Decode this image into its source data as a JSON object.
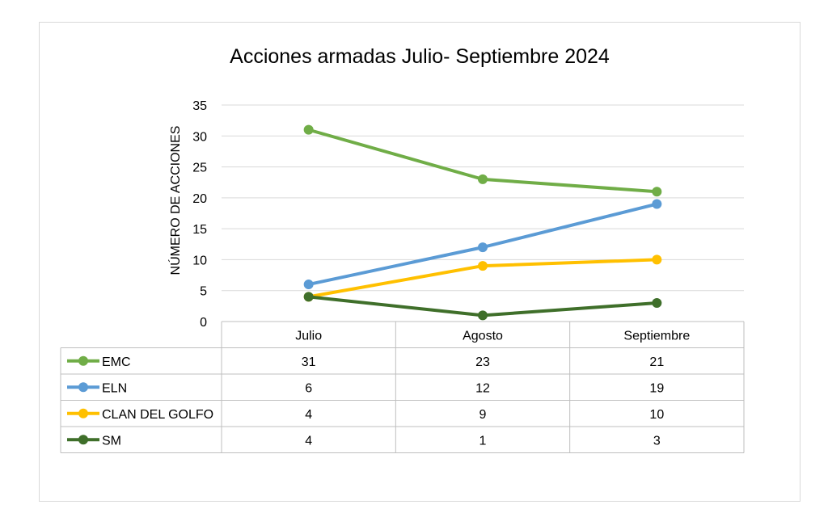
{
  "chart_data": {
    "type": "line",
    "title": "Acciones armadas Julio- Septiembre 2024",
    "xlabel": "",
    "ylabel": "NÚMERO DE ACCIONES",
    "categories": [
      "Julio",
      "Agosto",
      "Septiembre"
    ],
    "ylim": [
      0,
      35
    ],
    "yticks": [
      "0",
      "5",
      "10",
      "15",
      "20",
      "25",
      "30",
      "35"
    ],
    "grid": true,
    "legend": "data-table",
    "series": [
      {
        "name": "EMC",
        "values": [
          31,
          23,
          21
        ],
        "color": "#70ad47"
      },
      {
        "name": "ELN",
        "values": [
          6,
          12,
          19
        ],
        "color": "#5b9bd5"
      },
      {
        "name": "CLAN DEL GOLFO",
        "values": [
          4,
          9,
          10
        ],
        "color": "#ffc000"
      },
      {
        "name": "SM",
        "values": [
          4,
          1,
          3
        ],
        "color": "#3f6f2a"
      }
    ]
  }
}
